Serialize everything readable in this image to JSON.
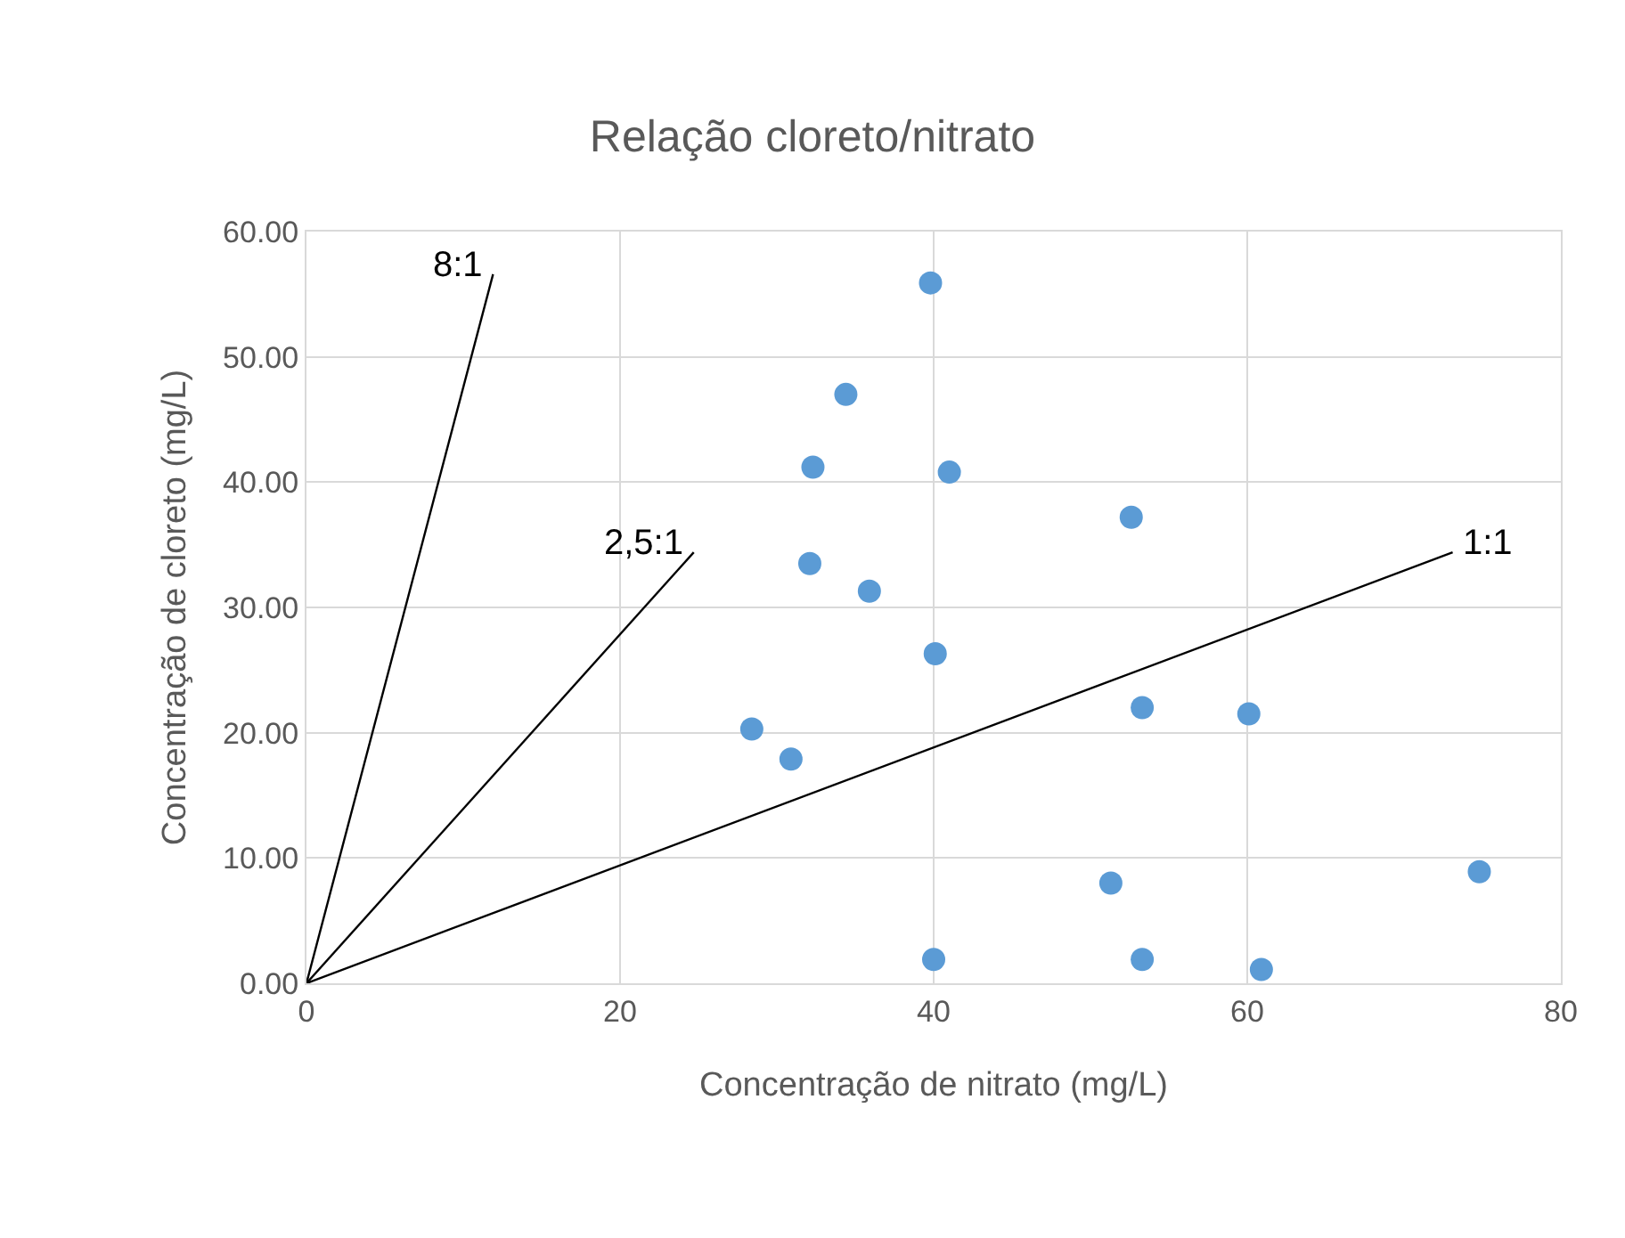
{
  "chart_data": {
    "type": "scatter",
    "title": "Relação cloreto/nitrato",
    "xlabel": "Concentração de nitrato (mg/L)",
    "ylabel": "Concentração de cloreto (mg/L)",
    "xlim": [
      0,
      80
    ],
    "xticks": [
      0,
      20,
      40,
      60,
      80
    ],
    "ylim": [
      0,
      60
    ],
    "yticks": [
      {
        "value": 0,
        "label": "0.00"
      },
      {
        "value": 10,
        "label": "10.00"
      },
      {
        "value": 20,
        "label": "20.00"
      },
      {
        "value": 30,
        "label": "30.00"
      },
      {
        "value": 40,
        "label": "40.00"
      },
      {
        "value": 50,
        "label": "50.00"
      },
      {
        "value": 60,
        "label": "60.00"
      }
    ],
    "grid": true,
    "legend": false,
    "marker": "circle",
    "series": [
      {
        "color": "#5b9bd5",
        "x": [
          39.8,
          41.0,
          52.6,
          40.1,
          53.3,
          60.1,
          51.3,
          74.8,
          40.0,
          53.3,
          60.9,
          34.4,
          32.3,
          32.1,
          35.9,
          28.4,
          30.9
        ],
        "values": [
          55.9,
          40.8,
          37.2,
          26.3,
          22.0,
          21.5,
          8.0,
          8.9,
          1.9,
          1.9,
          1.1,
          47.0,
          41.2,
          33.5,
          31.3,
          20.3,
          17.9
        ]
      },
      {
        "type": "line",
        "name": "8:1",
        "color": "#000000",
        "marker": "none",
        "line_style": "solid",
        "x": [
          0,
          11.9
        ],
        "values": [
          0,
          56.6
        ]
      },
      {
        "type": "line",
        "name": "2,5:1",
        "color": "#000000",
        "marker": "none",
        "line_style": "solid",
        "x": [
          0,
          24.7
        ],
        "values": [
          0,
          34.4
        ]
      },
      {
        "type": "line",
        "name": "1:1",
        "color": "#000000",
        "marker": "none",
        "line_style": "solid",
        "x": [
          0,
          73.1
        ],
        "values": [
          0,
          34.4
        ]
      }
    ]
  }
}
